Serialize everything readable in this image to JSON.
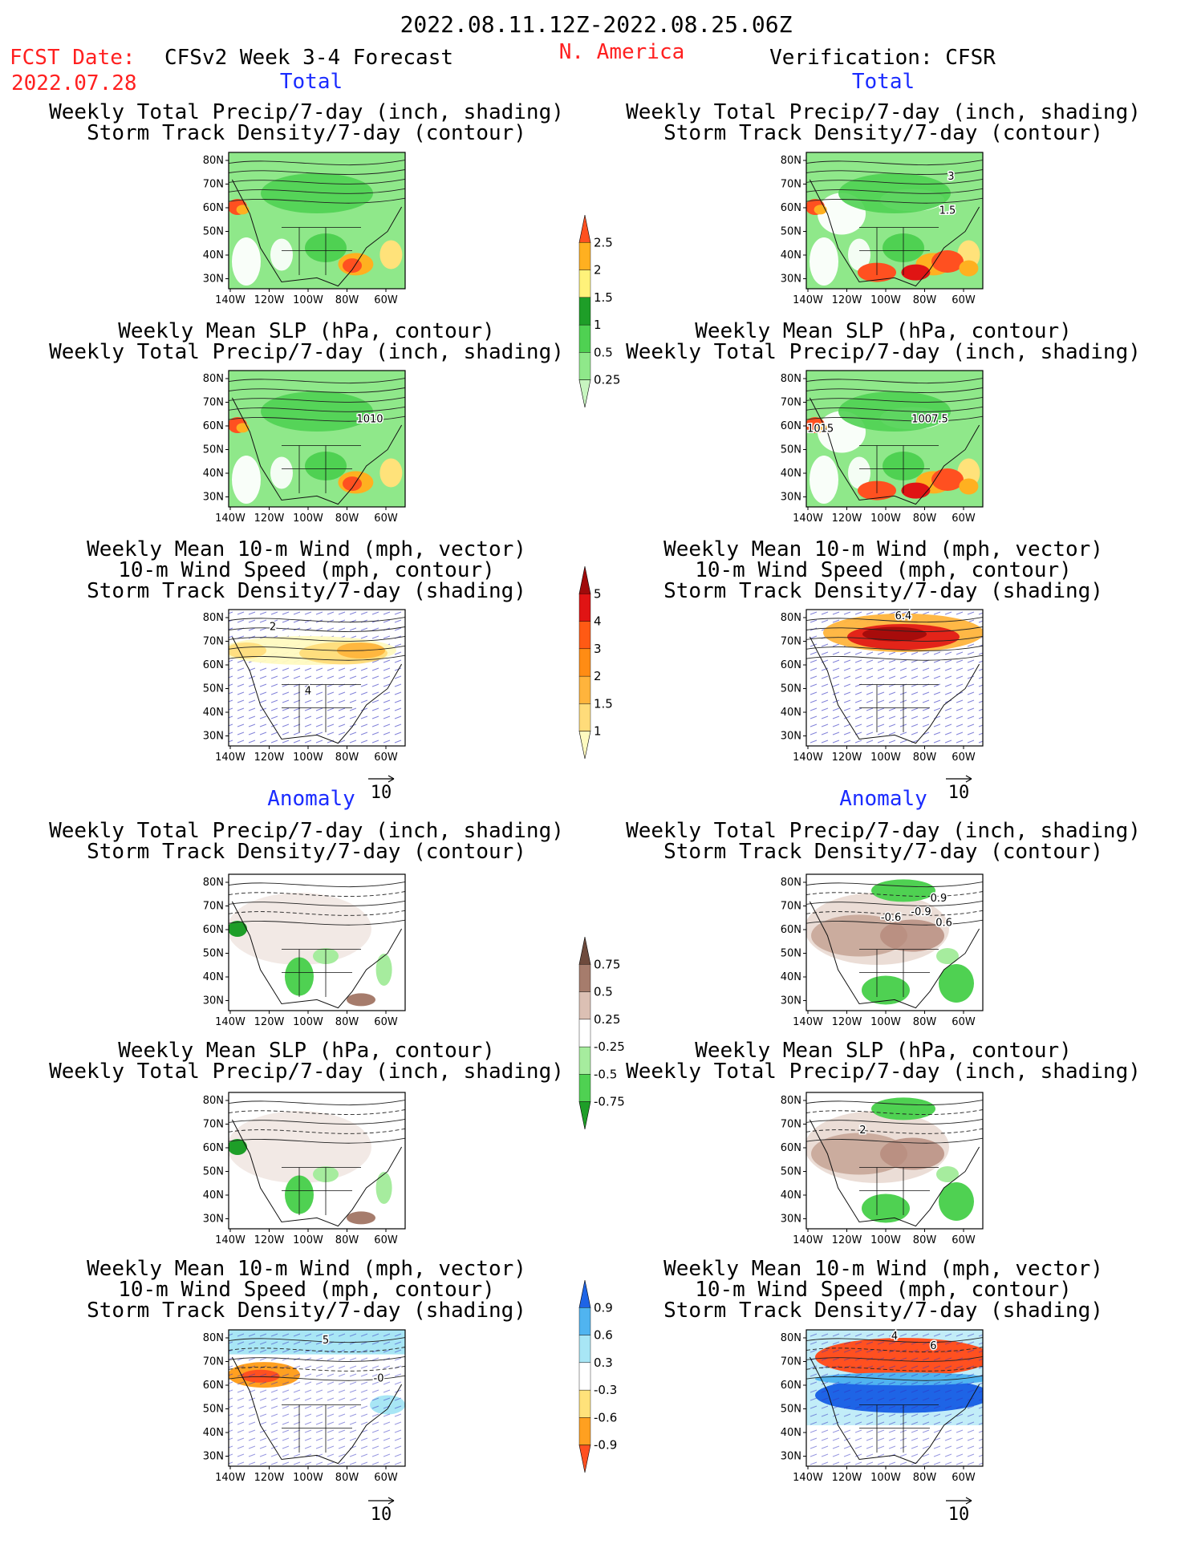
{
  "header": {
    "period": "2022.08.11.12Z-2022.08.25.06Z",
    "region": "N. America",
    "fcst_label": "FCST Date:",
    "fcst_date": "2022.07.28",
    "model": "CFSv2 Week 3-4 Forecast",
    "verification": "Verification: CFSR"
  },
  "sections": {
    "total": "Total",
    "anomaly": "Anomaly"
  },
  "titles": {
    "precip_track": [
      "Weekly Total Precip/7-day (inch, shading)",
      "Storm Track Density/7-day (contour)"
    ],
    "slp_precip": [
      "Weekly Mean SLP (hPa, contour)",
      "Weekly Total Precip/7-day (inch, shading)"
    ],
    "wind_track": [
      "Weekly Mean 10-m Wind (mph, vector)",
      "10-m Wind Speed (mph, contour)",
      "Storm Track Density/7-day (shading)"
    ]
  },
  "axes": {
    "lat_ticks": [
      "80N",
      "70N",
      "60N",
      "50N",
      "40N",
      "30N"
    ],
    "lon_ticks": [
      "140W",
      "120W",
      "100W",
      "80W",
      "60W"
    ]
  },
  "vector_ref": "10",
  "colorbars": {
    "precip_total": {
      "labels": [
        "0.25",
        "0.5",
        "1",
        "1.5",
        "2",
        "2.5"
      ],
      "colors": [
        "#c8f5c0",
        "#8fe88a",
        "#4fd152",
        "#1e9e28",
        "#fff27a",
        "#ffb020",
        "#ff5020"
      ]
    },
    "track_total": {
      "labels": [
        "1",
        "1.5",
        "2",
        "3",
        "4",
        "5"
      ],
      "colors": [
        "#fffac0",
        "#ffdc7a",
        "#ffb43c",
        "#ff8c14",
        "#ff5a14",
        "#e01414",
        "#a00a0a"
      ]
    },
    "precip_anom": {
      "labels": [
        "0.75",
        "0.5",
        "0.25",
        "-0.25",
        "-0.5",
        "-0.75"
      ],
      "colors": [
        "#1e9e28",
        "#4fd152",
        "#a6ec9e",
        "#ffffff",
        "#dcc0b4",
        "#a67c6c",
        "#6e4a3c"
      ]
    },
    "track_anom": {
      "labels": [
        "0.9",
        "0.6",
        "0.3",
        "-0.3",
        "-0.6",
        "-0.9"
      ],
      "colors": [
        "#ff5020",
        "#ffa020",
        "#ffe27a",
        "#ffffff",
        "#a8e6f5",
        "#50b4f0",
        "#1e64e6"
      ]
    }
  },
  "contour_labels": {
    "fcst_slp": "1010",
    "obs_track": [
      "3",
      "1.5"
    ],
    "obs_slp": [
      "1015",
      "1007.5"
    ],
    "fcst_wind": [
      "2",
      "4"
    ],
    "obs_wind": "6.4",
    "obs_anom_track": [
      "0.9",
      "-0.6",
      "-0.9",
      "0.6"
    ],
    "fcst_anom_slp": "",
    "obs_anom_slp": "2",
    "fcst_anom_wind": [
      "5",
      "-0"
    ],
    "obs_anom_wind": [
      "4",
      "6"
    ]
  }
}
